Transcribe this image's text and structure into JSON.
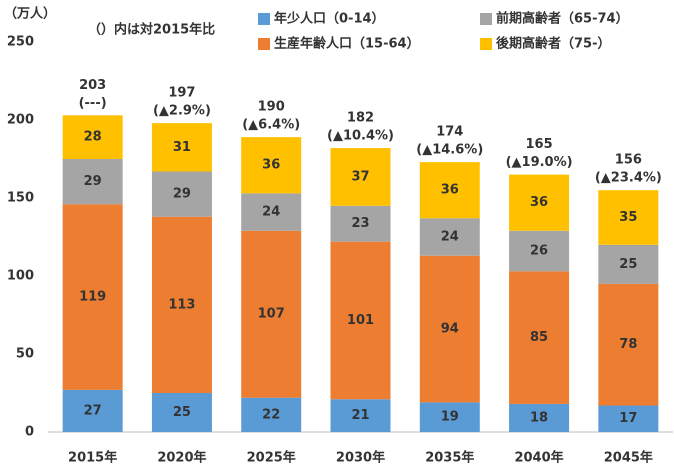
{
  "chart_data": {
    "type": "stacked_bar",
    "y_label": "（万人）",
    "annotation": "（）内は対2015年比",
    "categories": [
      "2015年",
      "2020年",
      "2025年",
      "2030年",
      "2035年",
      "2040年",
      "2045年"
    ],
    "series": [
      {
        "name": "年少人口（0-14）",
        "color": "#5b9bd5",
        "values": [
          27,
          25,
          22,
          21,
          19,
          18,
          17
        ]
      },
      {
        "name": "生産年齢人口（15-64）",
        "color": "#ed7d31",
        "values": [
          119,
          113,
          107,
          101,
          94,
          85,
          78
        ]
      },
      {
        "name": "前期高齢者（65-74）",
        "color": "#a5a5a5",
        "values": [
          29,
          29,
          24,
          23,
          24,
          26,
          25
        ]
      },
      {
        "name": "後期高齢者（75-）",
        "color": "#ffc000",
        "values": [
          28,
          31,
          36,
          37,
          36,
          36,
          35
        ]
      }
    ],
    "totals": [
      203,
      197,
      190,
      182,
      174,
      165,
      156
    ],
    "total_notes": [
      "(---)",
      "(▲2.9%)",
      "(▲6.4%)",
      "(▲10.4%)",
      "(▲14.6%)",
      "(▲19.0%)",
      "(▲23.4%)"
    ],
    "ylim": [
      0,
      250
    ],
    "yticks": [
      0,
      50,
      100,
      150,
      200,
      250
    ],
    "grid": false
  }
}
